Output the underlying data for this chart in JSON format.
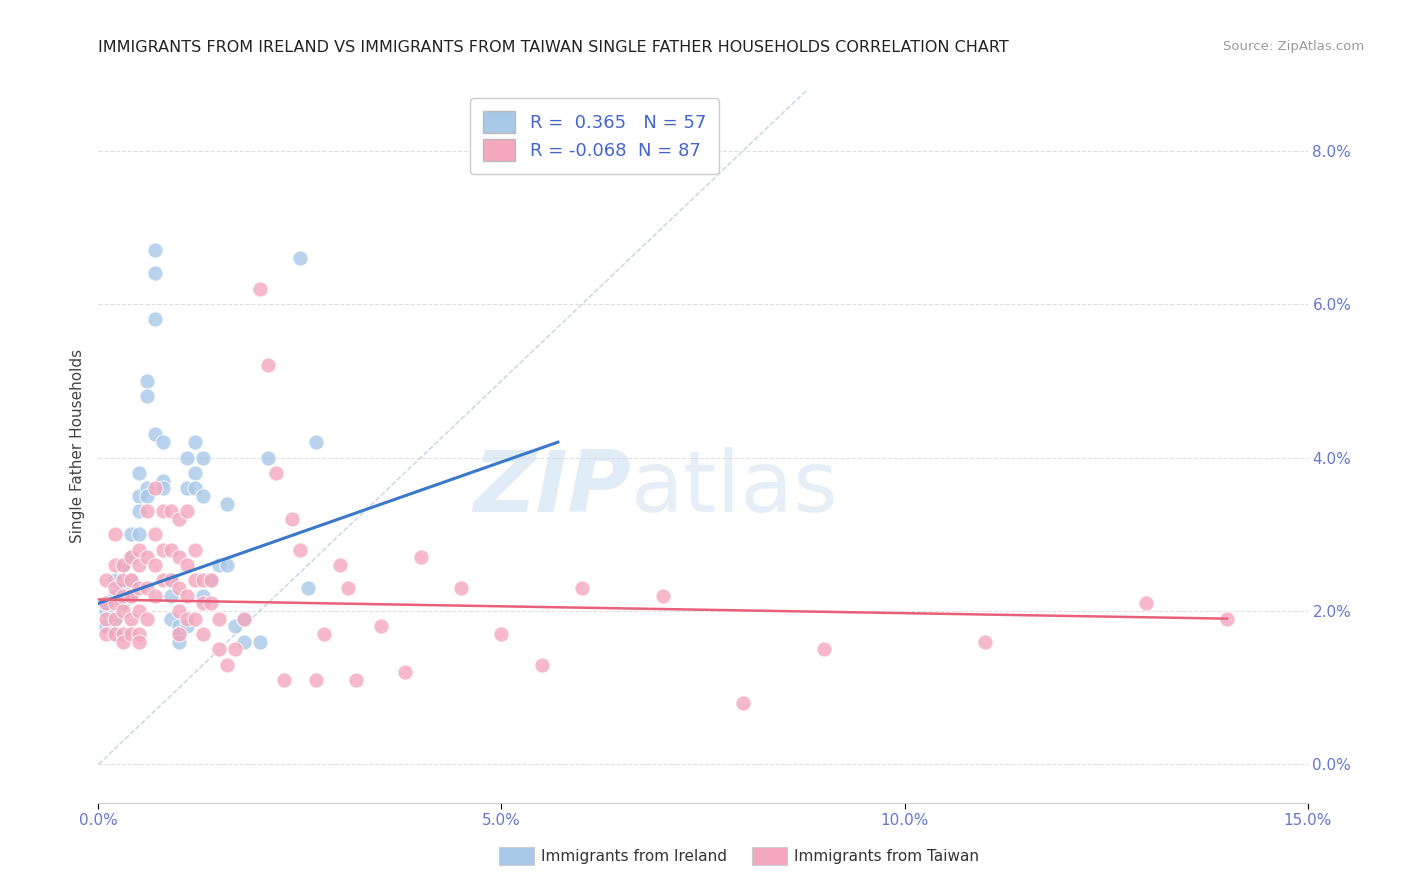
{
  "title": "IMMIGRANTS FROM IRELAND VS IMMIGRANTS FROM TAIWAN SINGLE FATHER HOUSEHOLDS CORRELATION CHART",
  "source": "Source: ZipAtlas.com",
  "ylabel_label": "Single Father Households",
  "xlim": [
    0.0,
    0.15
  ],
  "ylim": [
    -0.005,
    0.088
  ],
  "ireland_color": "#a8c8e8",
  "taiwan_color": "#f4a8be",
  "ireland_line_color": "#3a78c9",
  "taiwan_line_color": "#e8607a",
  "diagonal_line_color": "#b8c8d8",
  "R_ireland": 0.365,
  "N_ireland": 57,
  "R_taiwan": -0.068,
  "N_taiwan": 87,
  "legend_label_ireland": "Immigrants from Ireland",
  "legend_label_taiwan": "Immigrants from Taiwan",
  "ireland_scatter": [
    [
      0.001,
      0.02
    ],
    [
      0.001,
      0.021
    ],
    [
      0.001,
      0.018
    ],
    [
      0.002,
      0.022
    ],
    [
      0.002,
      0.024
    ],
    [
      0.002,
      0.019
    ],
    [
      0.002,
      0.017
    ],
    [
      0.003,
      0.026
    ],
    [
      0.003,
      0.023
    ],
    [
      0.003,
      0.021
    ],
    [
      0.003,
      0.022
    ],
    [
      0.004,
      0.03
    ],
    [
      0.004,
      0.027
    ],
    [
      0.004,
      0.024
    ],
    [
      0.004,
      0.022
    ],
    [
      0.005,
      0.035
    ],
    [
      0.005,
      0.033
    ],
    [
      0.005,
      0.03
    ],
    [
      0.005,
      0.038
    ],
    [
      0.006,
      0.05
    ],
    [
      0.006,
      0.048
    ],
    [
      0.006,
      0.036
    ],
    [
      0.006,
      0.035
    ],
    [
      0.007,
      0.067
    ],
    [
      0.007,
      0.064
    ],
    [
      0.007,
      0.058
    ],
    [
      0.007,
      0.043
    ],
    [
      0.008,
      0.042
    ],
    [
      0.008,
      0.037
    ],
    [
      0.008,
      0.036
    ],
    [
      0.009,
      0.022
    ],
    [
      0.009,
      0.019
    ],
    [
      0.009,
      0.024
    ],
    [
      0.01,
      0.018
    ],
    [
      0.01,
      0.017
    ],
    [
      0.01,
      0.016
    ],
    [
      0.011,
      0.04
    ],
    [
      0.011,
      0.036
    ],
    [
      0.011,
      0.018
    ],
    [
      0.012,
      0.042
    ],
    [
      0.012,
      0.038
    ],
    [
      0.012,
      0.036
    ],
    [
      0.013,
      0.04
    ],
    [
      0.013,
      0.035
    ],
    [
      0.013,
      0.022
    ],
    [
      0.014,
      0.024
    ],
    [
      0.015,
      0.026
    ],
    [
      0.016,
      0.034
    ],
    [
      0.016,
      0.026
    ],
    [
      0.017,
      0.018
    ],
    [
      0.018,
      0.016
    ],
    [
      0.018,
      0.019
    ],
    [
      0.02,
      0.016
    ],
    [
      0.021,
      0.04
    ],
    [
      0.025,
      0.066
    ],
    [
      0.026,
      0.023
    ],
    [
      0.027,
      0.042
    ]
  ],
  "taiwan_scatter": [
    [
      0.001,
      0.024
    ],
    [
      0.001,
      0.021
    ],
    [
      0.001,
      0.019
    ],
    [
      0.001,
      0.017
    ],
    [
      0.002,
      0.03
    ],
    [
      0.002,
      0.026
    ],
    [
      0.002,
      0.023
    ],
    [
      0.002,
      0.021
    ],
    [
      0.002,
      0.019
    ],
    [
      0.002,
      0.017
    ],
    [
      0.003,
      0.026
    ],
    [
      0.003,
      0.024
    ],
    [
      0.003,
      0.022
    ],
    [
      0.003,
      0.02
    ],
    [
      0.003,
      0.017
    ],
    [
      0.003,
      0.016
    ],
    [
      0.004,
      0.027
    ],
    [
      0.004,
      0.024
    ],
    [
      0.004,
      0.022
    ],
    [
      0.004,
      0.019
    ],
    [
      0.004,
      0.017
    ],
    [
      0.005,
      0.028
    ],
    [
      0.005,
      0.026
    ],
    [
      0.005,
      0.023
    ],
    [
      0.005,
      0.02
    ],
    [
      0.005,
      0.017
    ],
    [
      0.005,
      0.016
    ],
    [
      0.006,
      0.033
    ],
    [
      0.006,
      0.027
    ],
    [
      0.006,
      0.023
    ],
    [
      0.006,
      0.019
    ],
    [
      0.007,
      0.036
    ],
    [
      0.007,
      0.03
    ],
    [
      0.007,
      0.026
    ],
    [
      0.007,
      0.022
    ],
    [
      0.008,
      0.033
    ],
    [
      0.008,
      0.028
    ],
    [
      0.008,
      0.024
    ],
    [
      0.009,
      0.033
    ],
    [
      0.009,
      0.028
    ],
    [
      0.009,
      0.024
    ],
    [
      0.01,
      0.032
    ],
    [
      0.01,
      0.027
    ],
    [
      0.01,
      0.023
    ],
    [
      0.01,
      0.02
    ],
    [
      0.01,
      0.017
    ],
    [
      0.011,
      0.033
    ],
    [
      0.011,
      0.026
    ],
    [
      0.011,
      0.022
    ],
    [
      0.011,
      0.019
    ],
    [
      0.012,
      0.028
    ],
    [
      0.012,
      0.024
    ],
    [
      0.012,
      0.019
    ],
    [
      0.013,
      0.024
    ],
    [
      0.013,
      0.021
    ],
    [
      0.013,
      0.017
    ],
    [
      0.014,
      0.024
    ],
    [
      0.014,
      0.021
    ],
    [
      0.015,
      0.019
    ],
    [
      0.015,
      0.015
    ],
    [
      0.016,
      0.013
    ],
    [
      0.017,
      0.015
    ],
    [
      0.018,
      0.019
    ],
    [
      0.02,
      0.062
    ],
    [
      0.021,
      0.052
    ],
    [
      0.022,
      0.038
    ],
    [
      0.023,
      0.011
    ],
    [
      0.024,
      0.032
    ],
    [
      0.025,
      0.028
    ],
    [
      0.027,
      0.011
    ],
    [
      0.028,
      0.017
    ],
    [
      0.03,
      0.026
    ],
    [
      0.031,
      0.023
    ],
    [
      0.032,
      0.011
    ],
    [
      0.035,
      0.018
    ],
    [
      0.038,
      0.012
    ],
    [
      0.04,
      0.027
    ],
    [
      0.045,
      0.023
    ],
    [
      0.05,
      0.017
    ],
    [
      0.055,
      0.013
    ],
    [
      0.06,
      0.023
    ],
    [
      0.07,
      0.022
    ],
    [
      0.08,
      0.008
    ],
    [
      0.09,
      0.015
    ],
    [
      0.11,
      0.016
    ],
    [
      0.13,
      0.021
    ],
    [
      0.14,
      0.019
    ]
  ],
  "watermark_zip": "ZIP",
  "watermark_atlas": "atlas",
  "background_color": "#ffffff",
  "grid_color": "#e0e0e0",
  "ireland_trend_x": [
    0.0,
    0.057
  ],
  "ireland_trend_y": [
    0.021,
    0.042
  ],
  "taiwan_trend_x": [
    0.0,
    0.14
  ],
  "taiwan_trend_y": [
    0.0215,
    0.019
  ]
}
